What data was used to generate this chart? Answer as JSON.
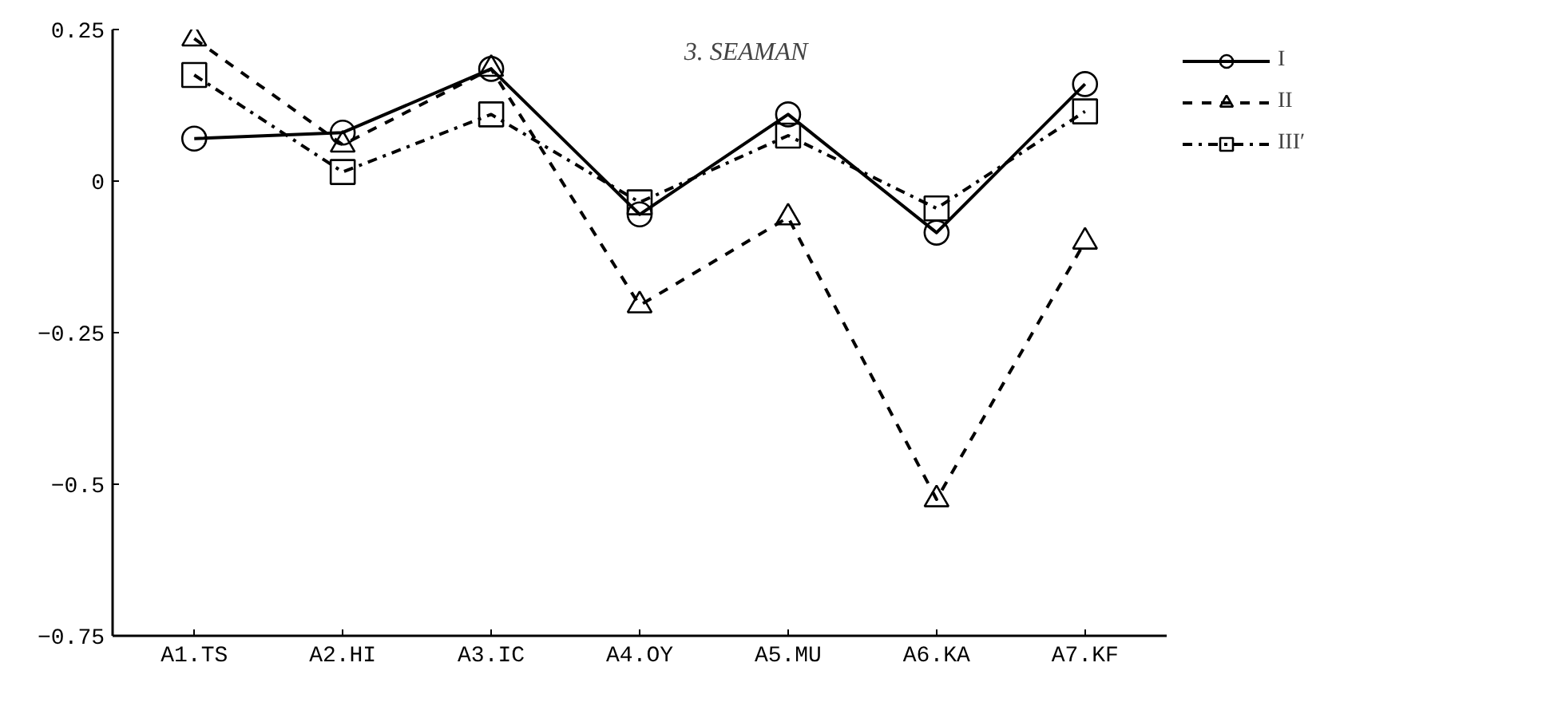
{
  "chart_data": {
    "type": "line",
    "title": "3. SEAMAN",
    "categories": [
      "A1.TS",
      "A2.HI",
      "A3.IC",
      "A4.OY",
      "A5.MU",
      "A6.KA",
      "A7.KF"
    ],
    "series": [
      {
        "name": "I",
        "color": "#000000",
        "marker": "circle",
        "line_style": "solid",
        "values": [
          0.07,
          0.08,
          0.185,
          -0.055,
          0.11,
          -0.085,
          0.16
        ]
      },
      {
        "name": "II",
        "color": "#000000",
        "marker": "triangle",
        "line_style": "dashed",
        "values": [
          0.235,
          0.06,
          0.185,
          -0.205,
          -0.06,
          -0.525,
          -0.1
        ]
      },
      {
        "name": "III′",
        "color": "#000000",
        "marker": "square",
        "line_style": "dashdot",
        "values": [
          0.175,
          0.015,
          0.11,
          -0.035,
          0.075,
          -0.045,
          0.115
        ]
      }
    ],
    "ylim": [
      -0.75,
      0.25
    ],
    "yticks": [
      0.25,
      0,
      -0.25,
      -0.5,
      -0.75
    ],
    "grid": false,
    "legend": "top right"
  }
}
